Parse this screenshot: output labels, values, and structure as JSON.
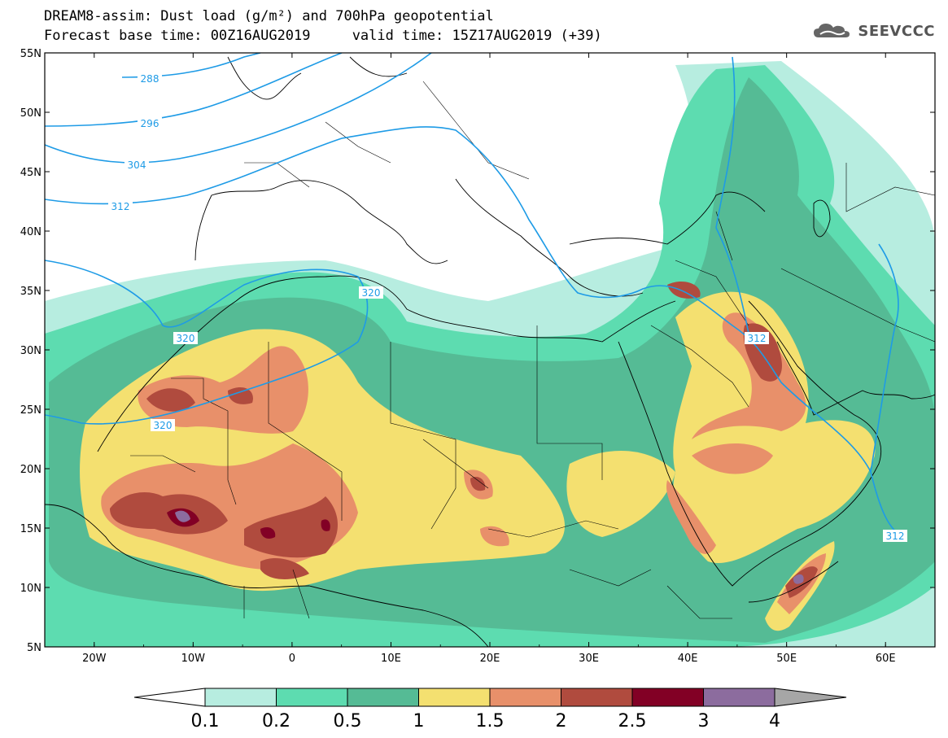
{
  "header": {
    "title_line1": "DREAM8-assim: Dust load (g/m²) and 700hPa geopotential",
    "title_line2": "Forecast base time: 00Z16AUG2019     valid time: 15Z17AUG2019 (+39)"
  },
  "logo": {
    "text": "SEEVCCC",
    "icon": "cloud-icon"
  },
  "map": {
    "lon_range": [
      -25,
      65
    ],
    "lat_range": [
      5,
      55
    ],
    "lat_labels": [
      "5N",
      "10N",
      "15N",
      "20N",
      "25N",
      "30N",
      "35N",
      "40N",
      "45N",
      "50N",
      "55N"
    ],
    "lon_labels": [
      "20W",
      "10W",
      "0",
      "10E",
      "20E",
      "30E",
      "40E",
      "50E",
      "60E"
    ],
    "contour_labels": [
      "288",
      "296",
      "304",
      "312",
      "320",
      "320",
      "312",
      "312",
      "320"
    ],
    "contour_color": "#1e9be6"
  },
  "colorbar": {
    "labels": [
      "0.1",
      "0.2",
      "0.5",
      "1",
      "1.5",
      "2",
      "2.5",
      "3",
      "4"
    ],
    "colors": [
      "#b7ede0",
      "#5ddcb0",
      "#55bb95",
      "#f4e070",
      "#e8906a",
      "#b04b3e",
      "#820025",
      "#8c6c9e"
    ],
    "under_color": "#ffffff",
    "over_color": "#a6a6a6"
  }
}
